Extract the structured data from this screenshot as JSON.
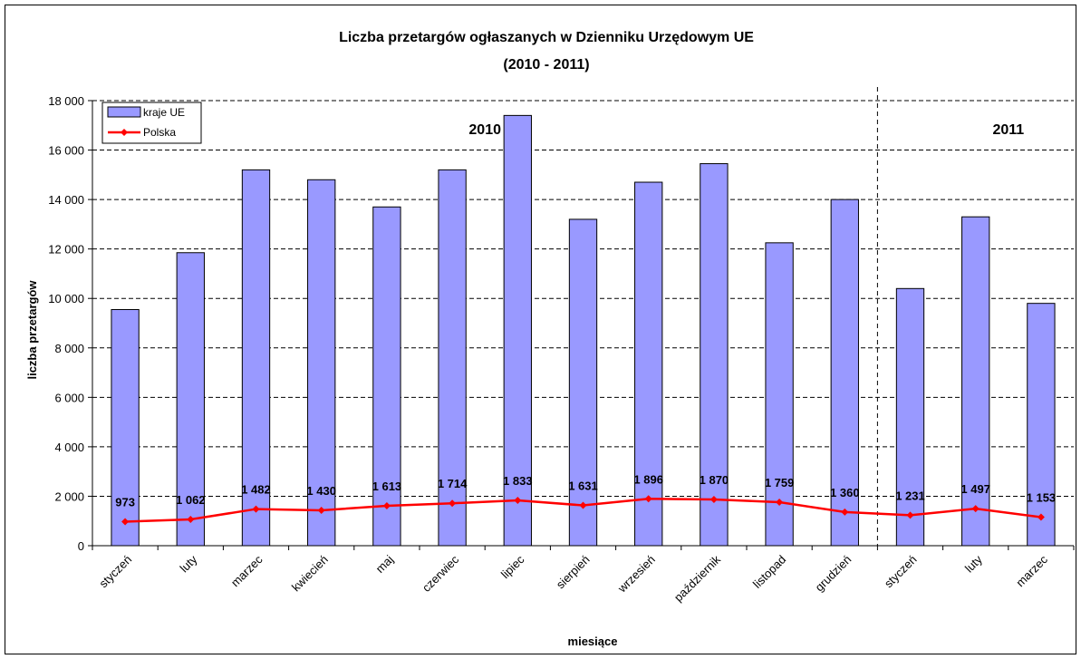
{
  "chart_data": {
    "type": "bar",
    "title": "Liczba przetargów ogłaszanych w Dzienniku Urzędowym UE",
    "subtitle": "(2010 - 2011)",
    "xlabel": "miesiące",
    "ylabel": "liczba przetargów",
    "ylim": [
      0,
      18000
    ],
    "yticks": [
      0,
      2000,
      4000,
      6000,
      8000,
      10000,
      12000,
      14000,
      16000,
      18000
    ],
    "ytick_labels": [
      "0",
      "2 000",
      "4 000",
      "6 000",
      "8 000",
      "10 000",
      "12 000",
      "14 000",
      "16 000",
      "18 000"
    ],
    "categories": [
      "styczeń",
      "luty",
      "marzec",
      "kwiecień",
      "maj",
      "czerwiec",
      "lipiec",
      "sierpień",
      "wrzesień",
      "październik",
      "listopad",
      "grudzień",
      "styczeń",
      "luty",
      "marzec"
    ],
    "series": [
      {
        "name": "kraje UE",
        "type": "bar",
        "color": "#9999FF",
        "values": [
          9550,
          11850,
          15200,
          14800,
          13700,
          15200,
          17400,
          13200,
          14700,
          15450,
          12250,
          14000,
          10400,
          13300,
          9800
        ]
      },
      {
        "name": "Polska",
        "type": "line",
        "color": "#FF0000",
        "values": [
          973,
          1062,
          1482,
          1430,
          1613,
          1714,
          1833,
          1631,
          1896,
          1870,
          1759,
          1360,
          1231,
          1497,
          1153
        ],
        "labels": [
          "973",
          "1 062",
          "1 482",
          "1 430",
          "1 613",
          "1 714",
          "1 833",
          "1 631",
          "1 896",
          "1 870",
          "1 759",
          "1 360",
          "1 231",
          "1 497",
          "1 153"
        ]
      }
    ],
    "annotations": [
      {
        "text": "2010",
        "category_index": 5.5
      },
      {
        "text": "2011",
        "category_index": 13.5
      }
    ],
    "divider_after_index": 11,
    "grid": true,
    "legend": "top-left"
  }
}
